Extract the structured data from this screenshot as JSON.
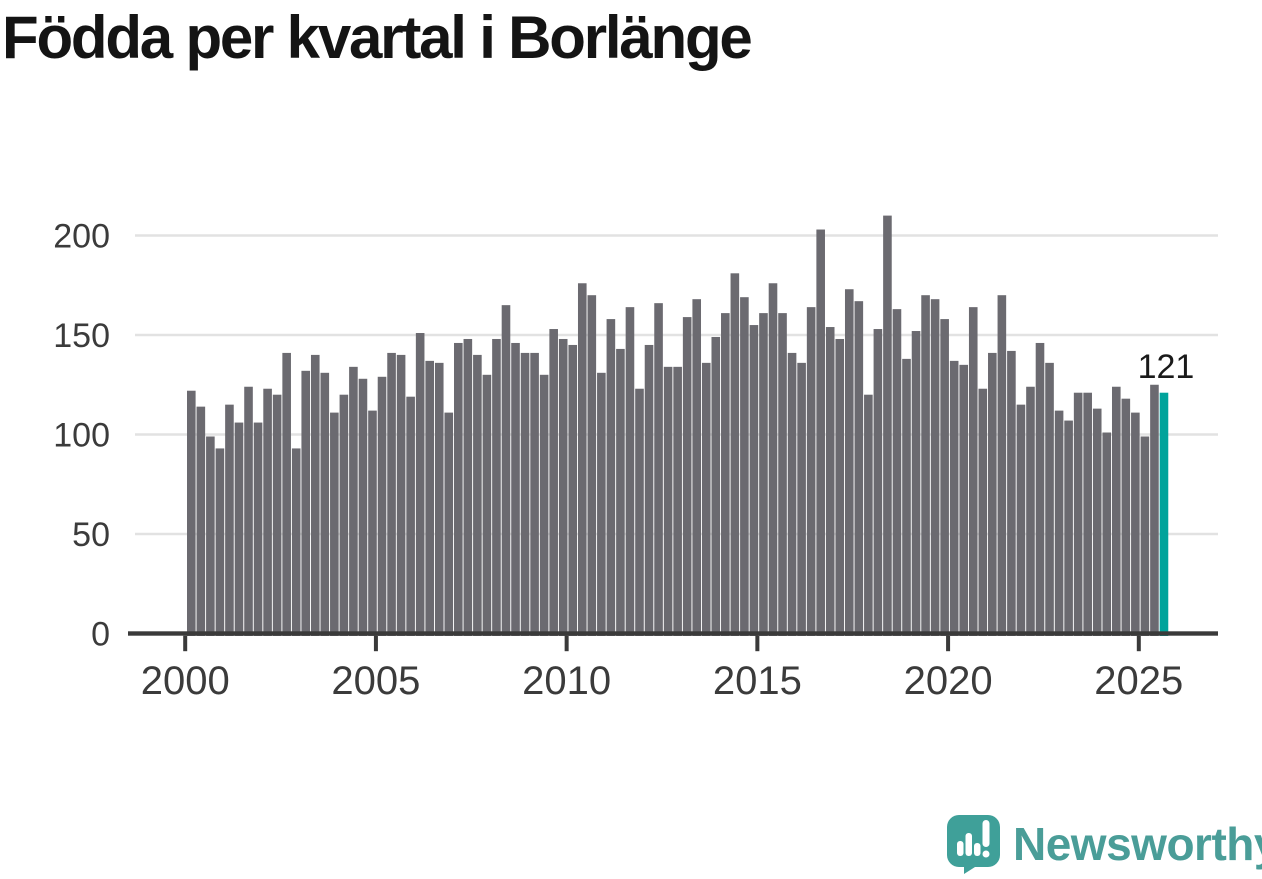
{
  "title": "Födda per kvartal i Borlänge",
  "chart_data": {
    "type": "bar",
    "title": "Födda per kvartal i Borlänge",
    "x_unit": "quarter",
    "x_range": {
      "start": "2000 Q1",
      "end": "2025 Q3"
    },
    "values": [
      122,
      114,
      99,
      93,
      115,
      106,
      124,
      106,
      123,
      120,
      141,
      93,
      132,
      140,
      131,
      111,
      120,
      134,
      128,
      112,
      129,
      141,
      140,
      119,
      151,
      137,
      136,
      111,
      146,
      148,
      140,
      130,
      148,
      165,
      146,
      141,
      141,
      130,
      153,
      148,
      145,
      176,
      170,
      131,
      158,
      143,
      164,
      123,
      145,
      166,
      134,
      134,
      159,
      168,
      136,
      149,
      161,
      181,
      169,
      155,
      161,
      176,
      161,
      141,
      136,
      164,
      203,
      154,
      148,
      173,
      167,
      120,
      153,
      210,
      163,
      138,
      152,
      170,
      168,
      158,
      137,
      135,
      164,
      123,
      141,
      170,
      142,
      115,
      124,
      146,
      136,
      112,
      107,
      121,
      121,
      113,
      101,
      124,
      118,
      111,
      99,
      125,
      121
    ],
    "start_year": 2000,
    "x_ticks": [
      2000,
      2005,
      2010,
      2015,
      2020,
      2025
    ],
    "y_ticks": [
      0,
      50,
      100,
      150,
      200
    ],
    "ylim": [
      0,
      215
    ],
    "grid": "horizontal",
    "legend": "none",
    "bar_color": "#6b6a70",
    "highlight_last": {
      "period": "2025 Q3",
      "value": 121,
      "label": "121",
      "color": "#00a39b"
    }
  },
  "annotation": {
    "last_value_label": "121"
  },
  "axis_colors": {
    "line": "#3a3a3a",
    "grid": "#e2e2e2",
    "tick_label": "#3b3b3b"
  },
  "logo": {
    "text": "Newsworthy",
    "text_color": "#4a9d98",
    "mark_color": "#3fa099"
  }
}
